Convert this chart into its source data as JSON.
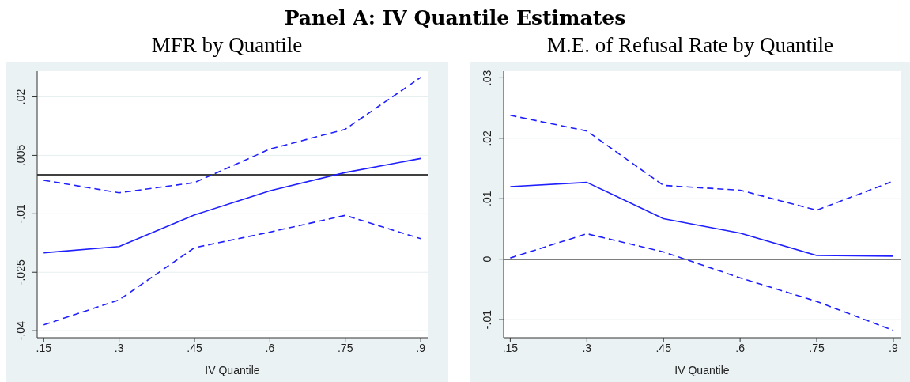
{
  "chart_data": [
    {
      "type": "line",
      "title": "MFR by Quantile",
      "annotations": [
        "Panel A: IV Quantile Estimates"
      ],
      "xlabel": "IV Quantile",
      "x": [
        0.15,
        0.3,
        0.45,
        0.6,
        0.75,
        0.9
      ],
      "series": [
        {
          "color": "#1f1fff",
          "line_style": "dashed",
          "values": [
            -0.0014,
            -0.0046,
            -0.002,
            0.0066,
            0.0117,
            0.025
          ]
        },
        {
          "color": "#1f1fff",
          "line_style": "solid",
          "values": [
            -0.02,
            -0.0184,
            -0.0103,
            -0.0041,
            0.0006,
            0.0042
          ]
        },
        {
          "color": "#1f1fff",
          "line_style": "dashed",
          "values": [
            -0.0385,
            -0.0321,
            -0.0187,
            -0.0147,
            -0.0104,
            -0.0164
          ]
        }
      ],
      "xlim": [
        0.137,
        0.914
      ],
      "xticks": [
        {
          "value": 0.15,
          "label": ".15"
        },
        {
          "value": 0.3,
          "label": ".3"
        },
        {
          "value": 0.45,
          "label": ".45"
        },
        {
          "value": 0.6,
          "label": ".6"
        },
        {
          "value": 0.75,
          "label": ".75"
        },
        {
          "value": 0.9,
          "label": ".9"
        }
      ],
      "ylim": [
        -0.0418,
        0.0266
      ],
      "yticks": [
        {
          "value": -0.04,
          "label": "-.04"
        },
        {
          "value": -0.025,
          "label": "-.025"
        },
        {
          "value": -0.01,
          "label": "-.01"
        },
        {
          "value": 0.005,
          "label": ".005"
        },
        {
          "value": 0.02,
          "label": ".02"
        }
      ],
      "ref_lines": [
        {
          "axis": "y",
          "value": 0,
          "color": "#000000"
        }
      ],
      "grid": "y",
      "legend": false,
      "marker": "none"
    },
    {
      "type": "line",
      "title": "M.E. of Refusal Rate by Quantile",
      "xlabel": "IV Quantile",
      "x": [
        0.15,
        0.3,
        0.45,
        0.6,
        0.75,
        0.9
      ],
      "series": [
        {
          "color": "#1f1fff",
          "line_style": "dashed",
          "values": [
            0.0238,
            0.0212,
            0.0122,
            0.0114,
            0.0081,
            0.0129
          ]
        },
        {
          "color": "#1f1fff",
          "line_style": "solid",
          "values": [
            0.012,
            0.0127,
            0.0067,
            0.0043,
            0.0006,
            0.0005
          ]
        },
        {
          "color": "#1f1fff",
          "line_style": "dashed",
          "values": [
            0.0002,
            0.0042,
            0.0012,
            -0.0031,
            -0.007,
            -0.0118
          ]
        }
      ],
      "xlim": [
        0.137,
        0.914
      ],
      "xticks": [
        {
          "value": 0.15,
          "label": ".15"
        },
        {
          "value": 0.3,
          "label": ".3"
        },
        {
          "value": 0.45,
          "label": ".45"
        },
        {
          "value": 0.6,
          "label": ".6"
        },
        {
          "value": 0.75,
          "label": ".75"
        },
        {
          "value": 0.9,
          "label": ".9"
        }
      ],
      "ylim": [
        -0.013,
        0.0311
      ],
      "yticks": [
        {
          "value": -0.01,
          "label": "-.01"
        },
        0,
        {
          "value": 0.01,
          "label": ".01"
        },
        {
          "value": 0.02,
          "label": ".02"
        },
        {
          "value": 0.03,
          "label": ".03"
        }
      ],
      "ref_lines": [
        {
          "axis": "y",
          "value": 0,
          "color": "#000000"
        }
      ],
      "grid": "y",
      "legend": false,
      "marker": "none"
    }
  ]
}
